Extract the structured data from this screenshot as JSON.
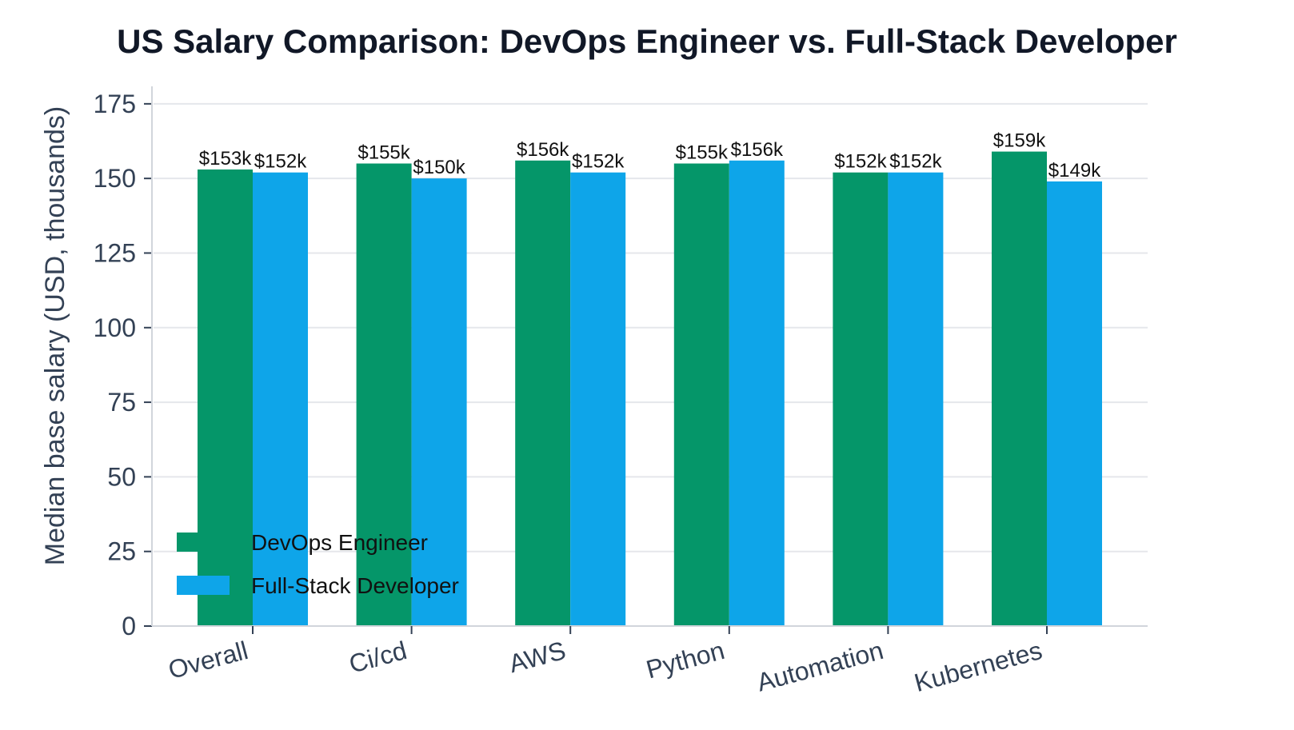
{
  "chart_data": {
    "type": "bar",
    "title": "US Salary Comparison: DevOps Engineer vs. Full-Stack Developer",
    "xlabel": "",
    "ylabel": "Median base salary (USD, thousands)",
    "categories": [
      "Overall",
      "Ci/cd",
      "AWS",
      "Python",
      "Automation",
      "Kubernetes"
    ],
    "series": [
      {
        "name": "DevOps Engineer",
        "color": "#059669",
        "values": [
          153,
          155,
          156,
          155,
          152,
          159
        ],
        "labels": [
          "$153k",
          "$155k",
          "$156k",
          "$155k",
          "$152k",
          "$159k"
        ]
      },
      {
        "name": "Full-Stack Developer",
        "color": "#0ea5e9",
        "values": [
          152,
          150,
          152,
          156,
          152,
          149
        ],
        "labels": [
          "$152k",
          "$150k",
          "$152k",
          "$156k",
          "$152k",
          "$149k"
        ]
      }
    ],
    "ylim": [
      0,
      183
    ],
    "yticks": [
      0,
      25,
      50,
      75,
      100,
      125,
      150,
      175
    ],
    "grid": true,
    "legend_position": "lower-left"
  }
}
